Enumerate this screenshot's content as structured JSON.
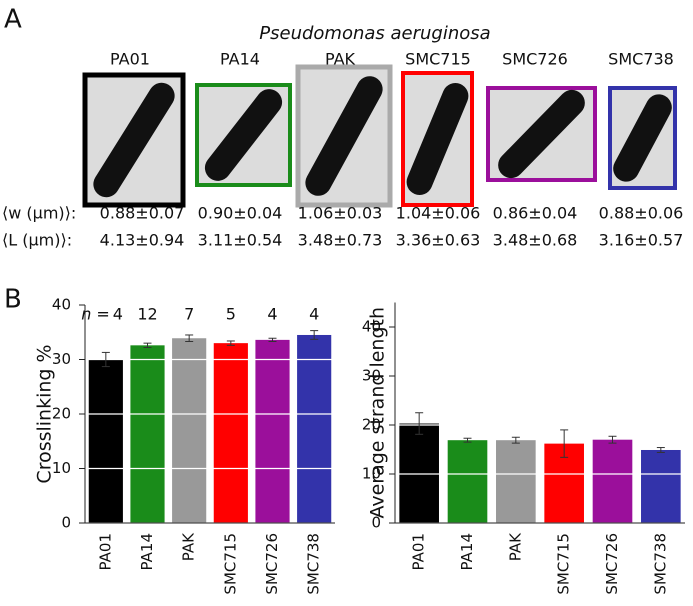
{
  "panel_a": {
    "label": "A",
    "title": "Pseudomonas aeruginosa",
    "strains": [
      "PA01",
      "PA14",
      "PAK",
      "SMC715",
      "SMC726",
      "SMC738"
    ],
    "w_label": "⟨w (μm)⟩:",
    "w_values": [
      "0.88±0.07",
      "0.90±0.04",
      "1.06±0.03",
      "1.04±0.06",
      "0.86±0.04",
      "0.88±0.06"
    ],
    "l_label": "⟨L (μm)⟩:",
    "l_values": [
      "4.13±0.94",
      "3.11±0.54",
      "3.48±0.73",
      "3.36±0.63",
      "3.48±0.68",
      "3.16±0.57"
    ]
  },
  "panel_b_label": "B",
  "chart_data": [
    {
      "type": "bar",
      "y_label": "Crosslinking %",
      "categories": [
        "PA01",
        "PA14",
        "PAK",
        "SMC715",
        "SMC726",
        "SMC738"
      ],
      "values": [
        30,
        32.6,
        33.9,
        33,
        33.6,
        34.5
      ],
      "errors": [
        1.3,
        0.4,
        0.6,
        0.4,
        0.3,
        0.8
      ],
      "colors": [
        "#000000",
        "#1a8c1a",
        "#999999",
        "#ff0000",
        "#9b0f9b",
        "#3333aa"
      ],
      "n_label": "n =",
      "n": [
        4,
        12,
        7,
        5,
        4,
        4
      ],
      "ylim": [
        0,
        40
      ],
      "yticks": [
        0,
        10,
        20,
        30,
        40
      ],
      "grid": true
    },
    {
      "type": "bar",
      "y_label": "Average strand length",
      "categories": [
        "PA01",
        "PA14",
        "PAK",
        "SMC715",
        "SMC726",
        "SMC738"
      ],
      "values": [
        20.3,
        16.9,
        16.9,
        16.2,
        17,
        14.9
      ],
      "errors": [
        2.2,
        0.4,
        0.6,
        2.8,
        0.7,
        0.5
      ],
      "colors": [
        "#000000",
        "#1a8c1a",
        "#999999",
        "#ff0000",
        "#9b0f9b",
        "#3333aa"
      ],
      "ylim": [
        0,
        45
      ],
      "yticks": [
        0,
        10,
        20,
        30,
        40
      ],
      "grid": true
    }
  ]
}
